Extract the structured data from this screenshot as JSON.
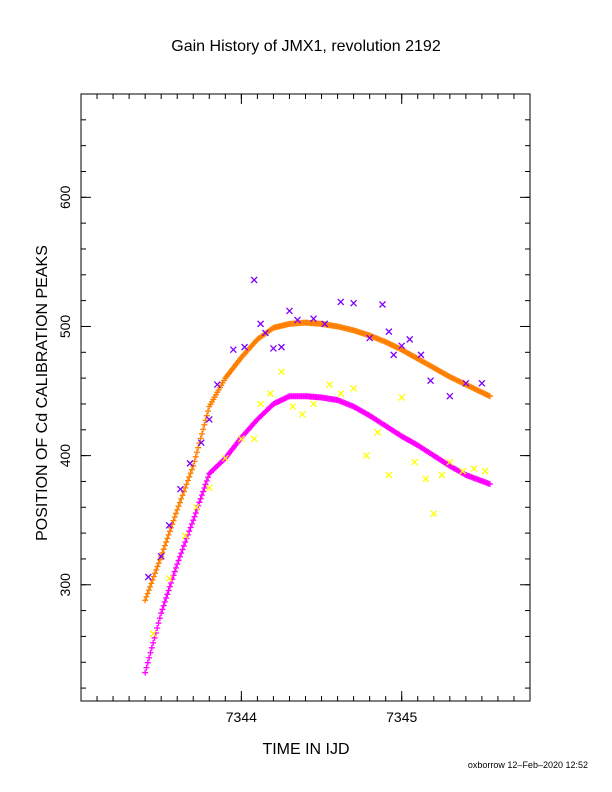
{
  "chart_data": {
    "type": "scatter",
    "title": "Gain History of JMX1, revolution 2192",
    "xlabel": "TIME IN IJD",
    "ylabel": "POSITION OF Cd CALIBRATION PEAKS",
    "xlim": [
      7343.0,
      7345.8
    ],
    "ylim": [
      210,
      680
    ],
    "xticks": [
      {
        "value": 7344,
        "label": "7344"
      },
      {
        "value": 7345,
        "label": "7345"
      }
    ],
    "yticks": [
      {
        "value": 300,
        "label": "300"
      },
      {
        "value": 400,
        "label": "400"
      },
      {
        "value": 500,
        "label": "500"
      },
      {
        "value": 600,
        "label": "600"
      }
    ],
    "grid": false,
    "legend": "none",
    "series": [
      {
        "color": "#ff7f00",
        "marker": "plus",
        "dense": true,
        "points": [
          [
            7343.4,
            288
          ],
          [
            7343.5,
            322
          ],
          [
            7343.6,
            358
          ],
          [
            7343.7,
            392
          ],
          [
            7343.8,
            438
          ],
          [
            7343.9,
            460
          ],
          [
            7344.0,
            476
          ],
          [
            7344.1,
            490
          ],
          [
            7344.2,
            499
          ],
          [
            7344.3,
            502
          ],
          [
            7344.4,
            503
          ],
          [
            7344.5,
            502
          ],
          [
            7344.6,
            500
          ],
          [
            7344.7,
            497
          ],
          [
            7344.8,
            493
          ],
          [
            7344.9,
            488
          ],
          [
            7345.0,
            482
          ],
          [
            7345.1,
            475
          ],
          [
            7345.2,
            468
          ],
          [
            7345.3,
            461
          ],
          [
            7345.4,
            455
          ],
          [
            7345.55,
            446
          ]
        ]
      },
      {
        "color": "#ff00ff",
        "marker": "plus",
        "dense": true,
        "points": [
          [
            7343.4,
            232
          ],
          [
            7343.45,
            255
          ],
          [
            7343.5,
            278
          ],
          [
            7343.6,
            316
          ],
          [
            7343.7,
            350
          ],
          [
            7343.8,
            386
          ],
          [
            7343.9,
            398
          ],
          [
            7344.0,
            414
          ],
          [
            7344.1,
            428
          ],
          [
            7344.2,
            440
          ],
          [
            7344.3,
            446
          ],
          [
            7344.4,
            446
          ],
          [
            7344.5,
            445
          ],
          [
            7344.6,
            443
          ],
          [
            7344.7,
            438
          ],
          [
            7344.8,
            431
          ],
          [
            7344.9,
            423
          ],
          [
            7345.0,
            415
          ],
          [
            7345.1,
            408
          ],
          [
            7345.2,
            400
          ],
          [
            7345.3,
            392
          ],
          [
            7345.4,
            385
          ],
          [
            7345.55,
            378
          ]
        ]
      },
      {
        "color": "#7f00ff",
        "marker": "cross",
        "dense": false,
        "points": [
          [
            7343.42,
            306
          ],
          [
            7343.5,
            322
          ],
          [
            7343.55,
            346
          ],
          [
            7343.62,
            374
          ],
          [
            7343.68,
            394
          ],
          [
            7343.75,
            410
          ],
          [
            7343.8,
            428
          ],
          [
            7343.85,
            455
          ],
          [
            7343.95,
            482
          ],
          [
            7344.02,
            484
          ],
          [
            7344.08,
            536
          ],
          [
            7344.12,
            502
          ],
          [
            7344.15,
            495
          ],
          [
            7344.2,
            483
          ],
          [
            7344.25,
            484
          ],
          [
            7344.3,
            512
          ],
          [
            7344.35,
            505
          ],
          [
            7344.45,
            506
          ],
          [
            7344.52,
            502
          ],
          [
            7344.62,
            519
          ],
          [
            7344.7,
            518
          ],
          [
            7344.8,
            491
          ],
          [
            7344.88,
            517
          ],
          [
            7344.92,
            496
          ],
          [
            7344.95,
            478
          ],
          [
            7345.0,
            485
          ],
          [
            7345.05,
            490
          ],
          [
            7345.12,
            478
          ],
          [
            7345.18,
            458
          ],
          [
            7345.3,
            446
          ],
          [
            7345.4,
            456
          ],
          [
            7345.5,
            456
          ]
        ]
      },
      {
        "color": "#ffff00",
        "marker": "cross",
        "dense": false,
        "points": [
          [
            7343.45,
            262
          ],
          [
            7343.55,
            305
          ],
          [
            7343.65,
            338
          ],
          [
            7343.72,
            360
          ],
          [
            7343.8,
            375
          ],
          [
            7343.9,
            398
          ],
          [
            7344.0,
            413
          ],
          [
            7344.08,
            413
          ],
          [
            7344.12,
            440
          ],
          [
            7344.18,
            448
          ],
          [
            7344.25,
            465
          ],
          [
            7344.32,
            438
          ],
          [
            7344.38,
            432
          ],
          [
            7344.45,
            440
          ],
          [
            7344.55,
            455
          ],
          [
            7344.62,
            448
          ],
          [
            7344.7,
            452
          ],
          [
            7344.78,
            400
          ],
          [
            7344.85,
            418
          ],
          [
            7344.92,
            385
          ],
          [
            7345.0,
            445
          ],
          [
            7345.08,
            395
          ],
          [
            7345.15,
            382
          ],
          [
            7345.2,
            355
          ],
          [
            7345.25,
            385
          ],
          [
            7345.3,
            395
          ],
          [
            7345.38,
            388
          ],
          [
            7345.45,
            390
          ],
          [
            7345.52,
            388
          ]
        ]
      }
    ]
  },
  "footer": {
    "credit": "oxborrow 12–Feb–2020 12:52"
  }
}
